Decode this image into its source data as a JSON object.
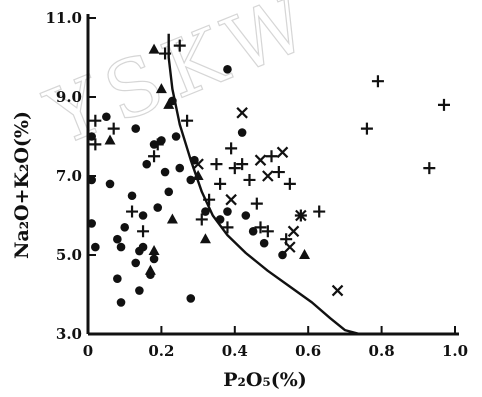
{
  "chart_data": {
    "type": "scatter",
    "xlabel": "P₂O₅(%)",
    "ylabel": "Na₂O+K₂O(%)",
    "xlim": [
      0,
      1.0
    ],
    "ylim": [
      3.0,
      11.0
    ],
    "x_ticks": [
      "0",
      "0.2",
      "0.4",
      "0.6",
      "0.8",
      "1.0"
    ],
    "y_ticks": [
      "3.0",
      "5.0",
      "7.0",
      "9.0",
      "11.0"
    ],
    "watermark": "YSKW",
    "grid": false,
    "legend": "none",
    "series": [
      {
        "marker": "dot",
        "points": [
          [
            0.01,
            8.0
          ],
          [
            0.01,
            6.9
          ],
          [
            0.01,
            5.8
          ],
          [
            0.02,
            5.2
          ],
          [
            0.05,
            8.5
          ],
          [
            0.06,
            6.8
          ],
          [
            0.08,
            5.4
          ],
          [
            0.08,
            4.4
          ],
          [
            0.09,
            3.8
          ],
          [
            0.09,
            5.2
          ],
          [
            0.1,
            5.7
          ],
          [
            0.12,
            6.5
          ],
          [
            0.13,
            8.2
          ],
          [
            0.13,
            4.8
          ],
          [
            0.14,
            5.1
          ],
          [
            0.14,
            4.1
          ],
          [
            0.15,
            6.0
          ],
          [
            0.15,
            5.2
          ],
          [
            0.16,
            7.3
          ],
          [
            0.17,
            4.5
          ],
          [
            0.18,
            7.8
          ],
          [
            0.18,
            4.9
          ],
          [
            0.19,
            6.2
          ],
          [
            0.2,
            7.9
          ],
          [
            0.21,
            7.1
          ],
          [
            0.22,
            6.6
          ],
          [
            0.23,
            8.9
          ],
          [
            0.24,
            8.0
          ],
          [
            0.25,
            7.2
          ],
          [
            0.28,
            6.9
          ],
          [
            0.28,
            3.9
          ],
          [
            0.29,
            7.4
          ],
          [
            0.32,
            6.1
          ],
          [
            0.36,
            5.9
          ],
          [
            0.38,
            9.7
          ],
          [
            0.38,
            6.1
          ],
          [
            0.42,
            8.1
          ],
          [
            0.43,
            6.0
          ],
          [
            0.45,
            5.6
          ],
          [
            0.48,
            5.3
          ],
          [
            0.53,
            5.0
          ]
        ]
      },
      {
        "marker": "triangle",
        "points": [
          [
            0.06,
            7.9
          ],
          [
            0.17,
            4.6
          ],
          [
            0.18,
            10.2
          ],
          [
            0.18,
            5.1
          ],
          [
            0.2,
            9.2
          ],
          [
            0.22,
            8.8
          ],
          [
            0.23,
            5.9
          ],
          [
            0.3,
            7.0
          ],
          [
            0.32,
            5.4
          ],
          [
            0.59,
            5.0
          ]
        ]
      },
      {
        "marker": "plus",
        "points": [
          [
            0.02,
            8.4
          ],
          [
            0.02,
            7.8
          ],
          [
            0.07,
            8.2
          ],
          [
            0.12,
            6.1
          ],
          [
            0.15,
            5.6
          ],
          [
            0.18,
            7.5
          ],
          [
            0.19,
            7.8
          ],
          [
            0.21,
            10.1
          ],
          [
            0.25,
            10.3
          ],
          [
            0.27,
            8.4
          ],
          [
            0.31,
            5.9
          ],
          [
            0.33,
            6.4
          ],
          [
            0.35,
            7.3
          ],
          [
            0.36,
            6.8
          ],
          [
            0.38,
            5.7
          ],
          [
            0.39,
            7.7
          ],
          [
            0.4,
            7.2
          ],
          [
            0.42,
            7.3
          ],
          [
            0.44,
            6.9
          ],
          [
            0.46,
            6.3
          ],
          [
            0.47,
            5.7
          ],
          [
            0.49,
            5.6
          ],
          [
            0.5,
            7.5
          ],
          [
            0.52,
            7.1
          ],
          [
            0.54,
            5.4
          ],
          [
            0.55,
            6.8
          ],
          [
            0.58,
            6.0
          ],
          [
            0.63,
            6.1
          ],
          [
            0.76,
            8.2
          ],
          [
            0.79,
            9.4
          ],
          [
            0.93,
            7.2
          ],
          [
            0.97,
            8.8
          ]
        ]
      },
      {
        "marker": "cross",
        "points": [
          [
            0.3,
            7.3
          ],
          [
            0.39,
            6.4
          ],
          [
            0.42,
            8.6
          ],
          [
            0.47,
            7.4
          ],
          [
            0.49,
            7.0
          ],
          [
            0.53,
            7.6
          ],
          [
            0.55,
            5.2
          ],
          [
            0.56,
            5.6
          ],
          [
            0.58,
            6.0
          ],
          [
            0.68,
            4.1
          ]
        ]
      }
    ],
    "boundary_curve": [
      [
        0.22,
        10.6
      ],
      [
        0.22,
        10.0
      ],
      [
        0.23,
        9.2
      ],
      [
        0.25,
        8.3
      ],
      [
        0.28,
        7.4
      ],
      [
        0.31,
        6.6
      ],
      [
        0.34,
        6.0
      ],
      [
        0.38,
        5.5
      ],
      [
        0.43,
        5.05
      ],
      [
        0.49,
        4.6
      ],
      [
        0.55,
        4.2
      ],
      [
        0.61,
        3.8
      ],
      [
        0.66,
        3.4
      ],
      [
        0.7,
        3.1
      ],
      [
        0.74,
        3.0
      ]
    ]
  }
}
